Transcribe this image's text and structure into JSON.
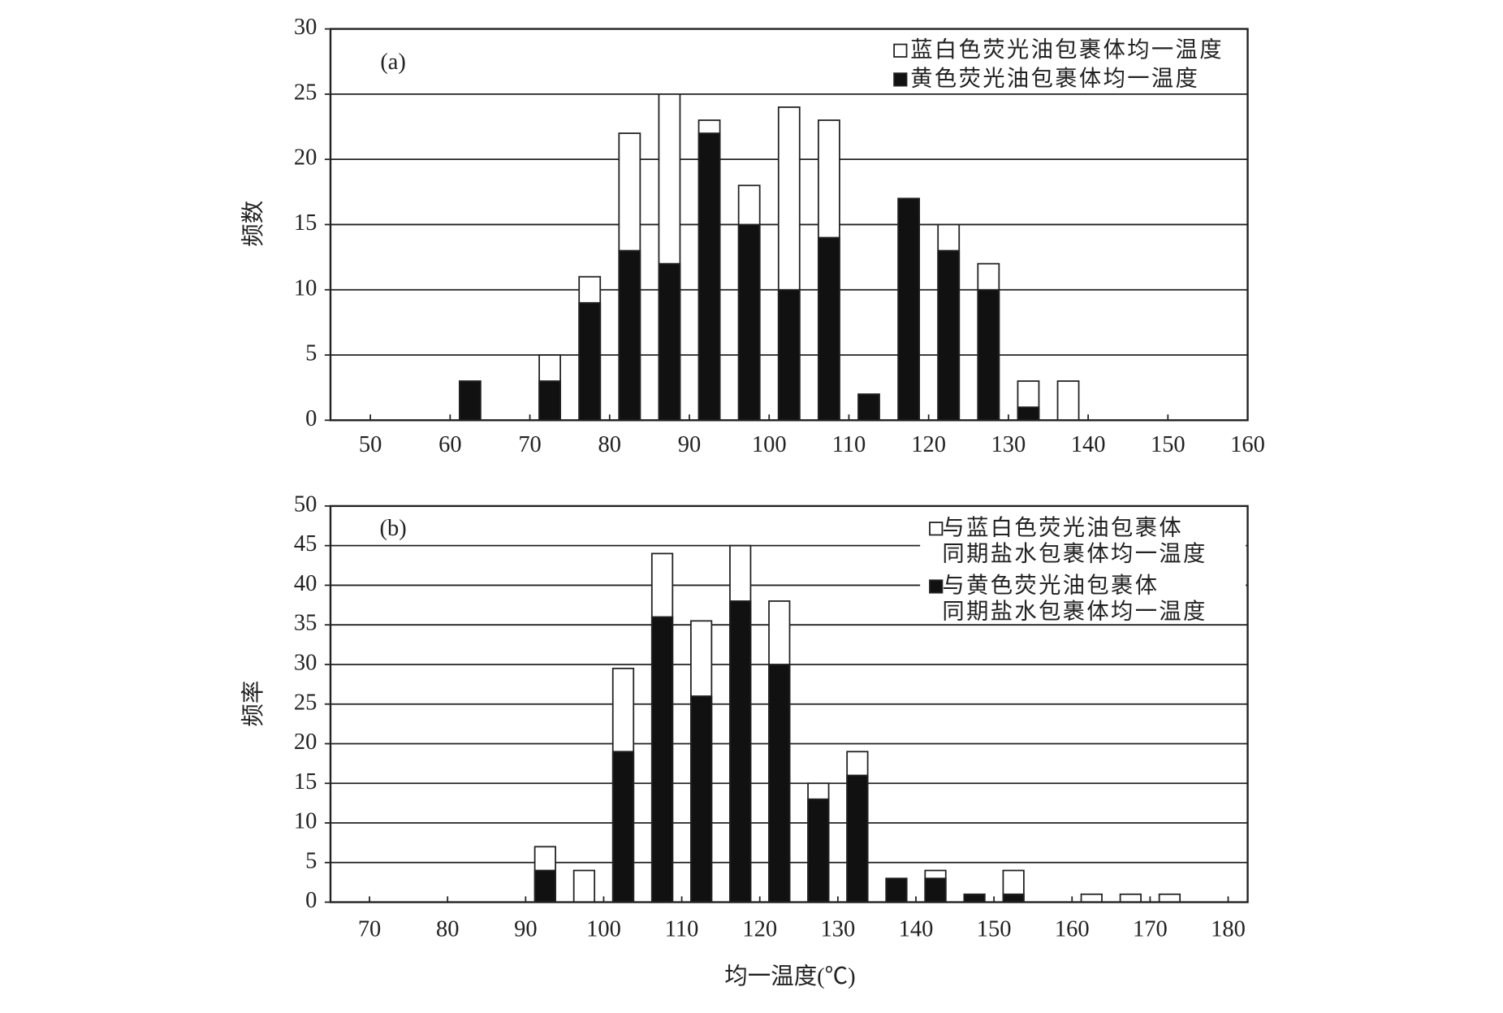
{
  "chart_data": [
    {
      "type": "histogram",
      "annotation": "(a)",
      "ylabel": "频数",
      "bins": [
        60,
        65,
        70,
        75,
        80,
        85,
        90,
        95,
        100,
        105,
        110,
        115,
        120,
        125,
        130,
        135,
        140
      ],
      "series": [
        {
          "name": "蓝白色荧光油包裹体均一温度",
          "color": "#ffffff",
          "values": [
            0,
            0,
            5,
            11,
            22,
            25,
            23,
            18,
            24,
            23,
            0,
            0,
            15,
            12,
            3,
            3
          ]
        },
        {
          "name": "黄色荧光油包裹体均一温度",
          "color": "#111111",
          "values": [
            3,
            0,
            3,
            9,
            13,
            12,
            22,
            15,
            10,
            14,
            2,
            17,
            13,
            10,
            1,
            0
          ]
        }
      ],
      "xlim": [
        45,
        160
      ],
      "xticks": [
        50,
        60,
        70,
        80,
        90,
        100,
        110,
        120,
        130,
        140,
        150,
        160
      ],
      "ylim": [
        0,
        30
      ],
      "yticks": [
        0,
        5,
        10,
        15,
        20,
        25,
        30
      ],
      "grid": true
    },
    {
      "type": "histogram",
      "annotation": "(b)",
      "ylabel": "频率",
      "xlabel": "均一温度(℃)",
      "bins": [
        90,
        95,
        100,
        105,
        110,
        115,
        120,
        125,
        130,
        135,
        140,
        145,
        150,
        155,
        160,
        165,
        170,
        175
      ],
      "series": [
        {
          "name": "与蓝白色荧光油包裹体\n同期盐水包裹体均一温度",
          "color": "#ffffff",
          "values": [
            7,
            4,
            29.5,
            44,
            35.5,
            45,
            38,
            15,
            19,
            0,
            4,
            0,
            4,
            0,
            1,
            1,
            1
          ]
        },
        {
          "name": "与黄色荧光油包裹体\n同期盐水包裹体均一温度",
          "color": "#111111",
          "values": [
            4,
            0,
            19,
            36,
            26,
            38,
            30,
            13,
            16,
            3,
            3,
            1,
            1,
            0,
            0,
            0,
            0
          ]
        }
      ],
      "xlim": [
        65,
        182.5
      ],
      "xticks": [
        70,
        80,
        90,
        100,
        110,
        120,
        130,
        140,
        150,
        160,
        170,
        180
      ],
      "ylim": [
        0,
        50
      ],
      "yticks": [
        0,
        5,
        10,
        15,
        20,
        25,
        30,
        35,
        40,
        45,
        50
      ],
      "grid": true
    }
  ]
}
